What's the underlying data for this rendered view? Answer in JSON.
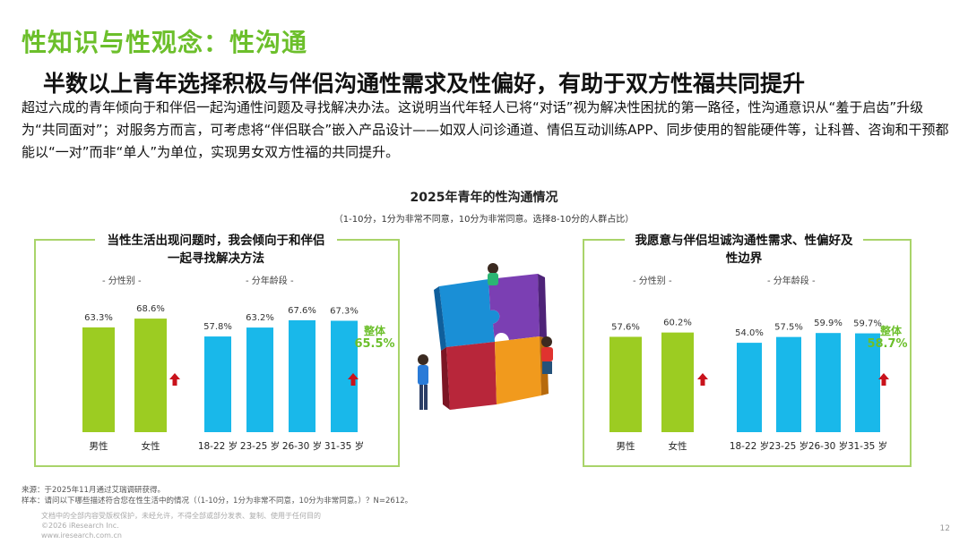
{
  "page": {
    "title": "性知识与性观念：性沟通",
    "headline": "半数以上青年选择积极与伴侣沟通性需求及性偏好，有助于双方性福共同提升",
    "summary": "超过六成的青年倾向于和伴侣一起沟通性问题及寻找解决办法。这说明当代年轻人已将“对话”视为解决性困扰的第一路径，性沟通意识从“羞于启齿”升级为“共同面对”；对服务方而言，可考虑将“伴侣联合”嵌入产品设计——如双人问诊通道、情侣互动训练APP、同步使用的智能硬件等，让科普、咨询和干预都能以“一对”而非“单人”为单位，实现男女双方性福的共同提升。",
    "chart_title": "2025年青年的性沟通情况",
    "chart_note": "（1-10分，1分为非常不同意，10分为非常同意。选择8-10分的人群占比）",
    "footer_source": "来源：于2025年11月通过艾瑞调研获得。",
    "footer_sample": "样本：请问以下哪些描述符合您在性生活中的情况（（1-10分，1分为非常不同意，10分为非常同意。）？N=2612。",
    "footer_copyright_1": "文档中的全部内容受版权保护，未经允许，不得全部或部分发表、复制、使用于任何目的",
    "footer_copyright_2": "©2026 iResearch Inc.",
    "footer_copyright_3": "www.iresearch.com.cn",
    "page_number": "12"
  },
  "colors": {
    "accent": "#6cbf2b",
    "gender_bar": "#9ccc22",
    "age_bar": "#19b8ea",
    "arrow": "#c9121b",
    "panel_border": "#a9d46a"
  },
  "chart_data": [
    {
      "type": "bar",
      "title": "当性生活出现问题时，我会倾向于和伴侣一起寻找解决方法",
      "groups": [
        {
          "label": "- 分性别 -",
          "categories": [
            "男性",
            "女性"
          ],
          "values": [
            63.3,
            68.6
          ],
          "value_labels": [
            "63.3%",
            "68.6%"
          ]
        },
        {
          "label": "- 分年龄段 -",
          "categories": [
            "18-22 岁",
            "23-25 岁",
            "26-30 岁",
            "31-35 岁"
          ],
          "values": [
            57.8,
            63.2,
            67.6,
            67.3
          ],
          "value_labels": [
            "57.8%",
            "63.2%",
            "67.6%",
            "67.3%"
          ]
        }
      ],
      "overall": {
        "label": "整体",
        "value": 65.5,
        "value_label": "65.5%"
      },
      "ylim": [
        0,
        100
      ]
    },
    {
      "type": "bar",
      "title": "我愿意与伴侣坦诚沟通性需求、性偏好及性边界",
      "groups": [
        {
          "label": "- 分性别 -",
          "categories": [
            "男性",
            "女性"
          ],
          "values": [
            57.6,
            60.2
          ],
          "value_labels": [
            "57.6%",
            "60.2%"
          ]
        },
        {
          "label": "- 分年龄段 -",
          "categories": [
            "18-22 岁",
            "23-25 岁",
            "26-30 岁",
            "31-35 岁"
          ],
          "values": [
            54.0,
            57.5,
            59.9,
            59.7
          ],
          "value_labels": [
            "54.0%",
            "57.5%",
            "59.9%",
            "59.7%"
          ]
        }
      ],
      "overall": {
        "label": "整体",
        "value": 58.7,
        "value_label": "58.7%"
      },
      "ylim": [
        0,
        100
      ]
    }
  ]
}
